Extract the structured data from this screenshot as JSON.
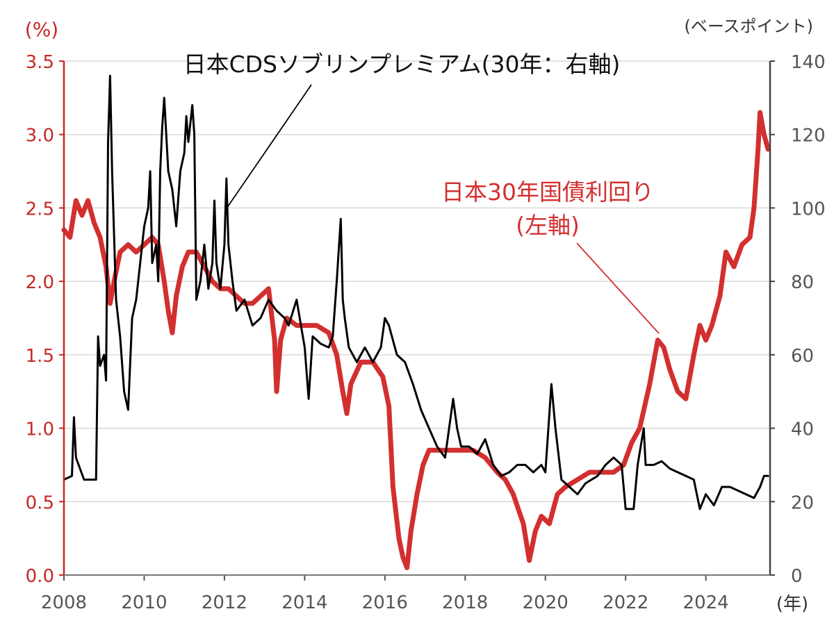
{
  "chart_data": {
    "type": "line",
    "left_axis_unit": "(%)",
    "right_axis_unit": "(ベースポイント)",
    "x_unit": "(年)",
    "x_ticks": [
      "2008",
      "2010",
      "2012",
      "2014",
      "2016",
      "2018",
      "2020",
      "2022",
      "2024"
    ],
    "left_ticks": [
      "0.0",
      "0.5",
      "1.0",
      "1.5",
      "2.0",
      "2.5",
      "3.0",
      "3.5"
    ],
    "right_ticks": [
      "0",
      "20",
      "40",
      "60",
      "80",
      "100",
      "120",
      "140"
    ],
    "xlim": [
      2008,
      2025.6
    ],
    "left_ylim": [
      0,
      3.5
    ],
    "right_ylim": [
      0,
      140
    ],
    "grid": "horizontal",
    "colors": {
      "jgb30": "#d32f2f",
      "cds": "#000000",
      "left_axis": "#c62828",
      "right_axis": "#444444",
      "grid": "#d9d9d9"
    },
    "annotations": {
      "cds_label": "日本CDSソブリンプレミアム(30年：右軸)",
      "jgb_label_line1": "日本30年国債利回り",
      "jgb_label_line2": "(左軸)"
    },
    "series": [
      {
        "name": "日本30年国債利回り",
        "axis": "left",
        "points": [
          [
            2008.0,
            2.35
          ],
          [
            2008.15,
            2.3
          ],
          [
            2008.3,
            2.55
          ],
          [
            2008.45,
            2.45
          ],
          [
            2008.6,
            2.55
          ],
          [
            2008.75,
            2.4
          ],
          [
            2008.9,
            2.3
          ],
          [
            2009.05,
            2.1
          ],
          [
            2009.15,
            1.85
          ],
          [
            2009.25,
            2.0
          ],
          [
            2009.4,
            2.2
          ],
          [
            2009.6,
            2.25
          ],
          [
            2009.8,
            2.2
          ],
          [
            2010.0,
            2.25
          ],
          [
            2010.2,
            2.3
          ],
          [
            2010.35,
            2.25
          ],
          [
            2010.5,
            2.0
          ],
          [
            2010.6,
            1.8
          ],
          [
            2010.7,
            1.65
          ],
          [
            2010.8,
            1.9
          ],
          [
            2010.95,
            2.1
          ],
          [
            2011.1,
            2.2
          ],
          [
            2011.3,
            2.2
          ],
          [
            2011.5,
            2.1
          ],
          [
            2011.7,
            2.0
          ],
          [
            2011.9,
            1.95
          ],
          [
            2012.1,
            1.95
          ],
          [
            2012.3,
            1.9
          ],
          [
            2012.5,
            1.85
          ],
          [
            2012.7,
            1.85
          ],
          [
            2012.9,
            1.9
          ],
          [
            2013.1,
            1.95
          ],
          [
            2013.25,
            1.6
          ],
          [
            2013.3,
            1.25
          ],
          [
            2013.4,
            1.6
          ],
          [
            2013.55,
            1.75
          ],
          [
            2013.8,
            1.7
          ],
          [
            2014.0,
            1.7
          ],
          [
            2014.3,
            1.7
          ],
          [
            2014.6,
            1.65
          ],
          [
            2014.8,
            1.5
          ],
          [
            2014.95,
            1.25
          ],
          [
            2015.05,
            1.1
          ],
          [
            2015.15,
            1.3
          ],
          [
            2015.4,
            1.45
          ],
          [
            2015.7,
            1.45
          ],
          [
            2015.95,
            1.35
          ],
          [
            2016.1,
            1.15
          ],
          [
            2016.2,
            0.6
          ],
          [
            2016.35,
            0.25
          ],
          [
            2016.45,
            0.12
          ],
          [
            2016.55,
            0.05
          ],
          [
            2016.65,
            0.3
          ],
          [
            2016.8,
            0.55
          ],
          [
            2016.95,
            0.75
          ],
          [
            2017.1,
            0.85
          ],
          [
            2017.3,
            0.85
          ],
          [
            2017.6,
            0.85
          ],
          [
            2017.9,
            0.85
          ],
          [
            2018.2,
            0.85
          ],
          [
            2018.5,
            0.8
          ],
          [
            2018.8,
            0.7
          ],
          [
            2019.0,
            0.65
          ],
          [
            2019.2,
            0.55
          ],
          [
            2019.45,
            0.35
          ],
          [
            2019.6,
            0.1
          ],
          [
            2019.75,
            0.3
          ],
          [
            2019.9,
            0.4
          ],
          [
            2020.1,
            0.35
          ],
          [
            2020.3,
            0.55
          ],
          [
            2020.5,
            0.6
          ],
          [
            2020.8,
            0.65
          ],
          [
            2021.1,
            0.7
          ],
          [
            2021.4,
            0.7
          ],
          [
            2021.7,
            0.7
          ],
          [
            2021.95,
            0.75
          ],
          [
            2022.15,
            0.9
          ],
          [
            2022.35,
            1.0
          ],
          [
            2022.6,
            1.3
          ],
          [
            2022.8,
            1.6
          ],
          [
            2022.95,
            1.55
          ],
          [
            2023.1,
            1.4
          ],
          [
            2023.3,
            1.25
          ],
          [
            2023.5,
            1.2
          ],
          [
            2023.7,
            1.5
          ],
          [
            2023.85,
            1.7
          ],
          [
            2024.0,
            1.6
          ],
          [
            2024.15,
            1.7
          ],
          [
            2024.35,
            1.9
          ],
          [
            2024.5,
            2.2
          ],
          [
            2024.7,
            2.1
          ],
          [
            2024.9,
            2.25
          ],
          [
            2025.1,
            2.3
          ],
          [
            2025.2,
            2.5
          ],
          [
            2025.3,
            2.9
          ],
          [
            2025.35,
            3.15
          ],
          [
            2025.45,
            3.0
          ],
          [
            2025.55,
            2.9
          ]
        ]
      },
      {
        "name": "日本CDSソブリンプレミアム(30年)",
        "axis": "right",
        "points": [
          [
            2008.0,
            26
          ],
          [
            2008.2,
            27
          ],
          [
            2008.25,
            43
          ],
          [
            2008.3,
            32
          ],
          [
            2008.5,
            26
          ],
          [
            2008.8,
            26
          ],
          [
            2008.85,
            65
          ],
          [
            2008.9,
            57
          ],
          [
            2009.0,
            60
          ],
          [
            2009.05,
            53
          ],
          [
            2009.1,
            118
          ],
          [
            2009.15,
            136
          ],
          [
            2009.2,
            110
          ],
          [
            2009.3,
            75
          ],
          [
            2009.4,
            65
          ],
          [
            2009.5,
            50
          ],
          [
            2009.6,
            45
          ],
          [
            2009.7,
            70
          ],
          [
            2009.8,
            75
          ],
          [
            2009.9,
            85
          ],
          [
            2010.0,
            95
          ],
          [
            2010.1,
            100
          ],
          [
            2010.15,
            110
          ],
          [
            2010.2,
            85
          ],
          [
            2010.3,
            90
          ],
          [
            2010.35,
            80
          ],
          [
            2010.4,
            110
          ],
          [
            2010.45,
            122
          ],
          [
            2010.5,
            130
          ],
          [
            2010.55,
            120
          ],
          [
            2010.6,
            110
          ],
          [
            2010.7,
            105
          ],
          [
            2010.8,
            95
          ],
          [
            2010.9,
            110
          ],
          [
            2011.0,
            115
          ],
          [
            2011.05,
            125
          ],
          [
            2011.1,
            118
          ],
          [
            2011.2,
            128
          ],
          [
            2011.25,
            120
          ],
          [
            2011.3,
            75
          ],
          [
            2011.4,
            80
          ],
          [
            2011.5,
            90
          ],
          [
            2011.6,
            78
          ],
          [
            2011.7,
            85
          ],
          [
            2011.75,
            102
          ],
          [
            2011.8,
            85
          ],
          [
            2011.9,
            78
          ],
          [
            2012.0,
            90
          ],
          [
            2012.05,
            108
          ],
          [
            2012.1,
            90
          ],
          [
            2012.2,
            80
          ],
          [
            2012.3,
            72
          ],
          [
            2012.5,
            75
          ],
          [
            2012.7,
            68
          ],
          [
            2012.9,
            70
          ],
          [
            2013.1,
            75
          ],
          [
            2013.3,
            72
          ],
          [
            2013.5,
            70
          ],
          [
            2013.6,
            68
          ],
          [
            2013.8,
            75
          ],
          [
            2014.0,
            62
          ],
          [
            2014.1,
            48
          ],
          [
            2014.2,
            65
          ],
          [
            2014.4,
            63
          ],
          [
            2014.6,
            62
          ],
          [
            2014.7,
            65
          ],
          [
            2014.8,
            80
          ],
          [
            2014.9,
            97
          ],
          [
            2014.95,
            75
          ],
          [
            2015.0,
            70
          ],
          [
            2015.1,
            62
          ],
          [
            2015.3,
            58
          ],
          [
            2015.5,
            62
          ],
          [
            2015.7,
            58
          ],
          [
            2015.9,
            62
          ],
          [
            2016.0,
            70
          ],
          [
            2016.1,
            68
          ],
          [
            2016.3,
            60
          ],
          [
            2016.5,
            58
          ],
          [
            2016.7,
            52
          ],
          [
            2016.9,
            45
          ],
          [
            2017.1,
            40
          ],
          [
            2017.3,
            35
          ],
          [
            2017.5,
            32
          ],
          [
            2017.6,
            40
          ],
          [
            2017.7,
            48
          ],
          [
            2017.8,
            40
          ],
          [
            2017.9,
            35
          ],
          [
            2018.1,
            35
          ],
          [
            2018.3,
            33
          ],
          [
            2018.5,
            37
          ],
          [
            2018.7,
            30
          ],
          [
            2018.9,
            27
          ],
          [
            2019.1,
            28
          ],
          [
            2019.3,
            30
          ],
          [
            2019.5,
            30
          ],
          [
            2019.7,
            28
          ],
          [
            2019.9,
            30
          ],
          [
            2020.0,
            28
          ],
          [
            2020.15,
            52
          ],
          [
            2020.25,
            40
          ],
          [
            2020.4,
            26
          ],
          [
            2020.6,
            24
          ],
          [
            2020.8,
            22
          ],
          [
            2021.0,
            25
          ],
          [
            2021.3,
            27
          ],
          [
            2021.5,
            30
          ],
          [
            2021.7,
            32
          ],
          [
            2021.9,
            30
          ],
          [
            2022.0,
            18
          ],
          [
            2022.2,
            18
          ],
          [
            2022.3,
            30
          ],
          [
            2022.45,
            40
          ],
          [
            2022.5,
            30
          ],
          [
            2022.7,
            30
          ],
          [
            2022.9,
            31
          ],
          [
            2023.1,
            29
          ],
          [
            2023.3,
            28
          ],
          [
            2023.5,
            27
          ],
          [
            2023.7,
            26
          ],
          [
            2023.85,
            18
          ],
          [
            2024.0,
            22
          ],
          [
            2024.2,
            19
          ],
          [
            2024.4,
            24
          ],
          [
            2024.6,
            24
          ],
          [
            2024.8,
            23
          ],
          [
            2025.0,
            22
          ],
          [
            2025.2,
            21
          ],
          [
            2025.35,
            24
          ],
          [
            2025.45,
            27
          ],
          [
            2025.55,
            27
          ]
        ]
      }
    ]
  }
}
